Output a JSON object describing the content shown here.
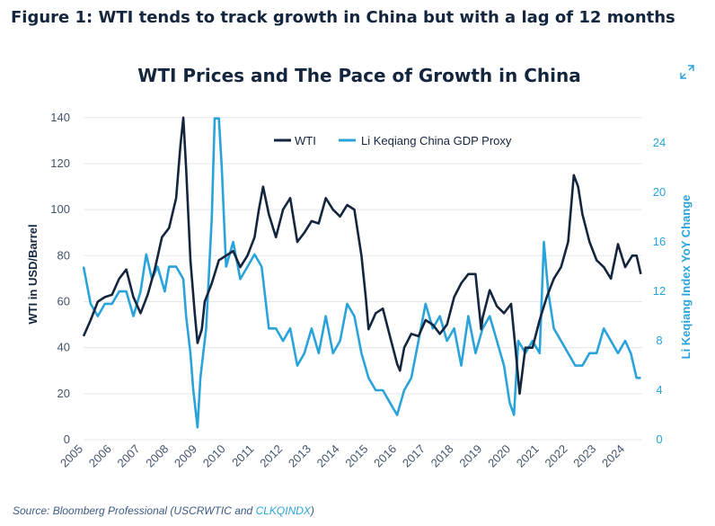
{
  "figure_title": "Figure 1: WTI tends to track growth in China but with a lag of 12 months",
  "source": {
    "prefix": "Source: Bloomberg Professional (USCRWTIC and ",
    "link": "CLKQINDX",
    "suffix": ")"
  },
  "expand_icon": "expand-arrows-icon",
  "colors": {
    "wti": "#14253e",
    "gdp": "#2aa3db"
  },
  "chart_data": {
    "type": "line",
    "title": "WTI Prices and The Pace of Growth in China",
    "ylabel": "WTI in USD/Barrel",
    "y2label": "Li Keqiang Index YoY Change",
    "ylim": [
      0,
      145
    ],
    "yticks": [
      0,
      20,
      40,
      60,
      80,
      100,
      120,
      140
    ],
    "y2lim": [
      0,
      27
    ],
    "y2ticks": [
      0,
      4,
      8,
      12,
      16,
      20,
      24
    ],
    "xlim": [
      2005,
      2024.6
    ],
    "xticks": [
      "2005",
      "2006",
      "2007",
      "2008",
      "2009",
      "2010",
      "2011",
      "2012",
      "2013",
      "2014",
      "2015",
      "2016",
      "2017",
      "2018",
      "2019",
      "2020",
      "2021",
      "2022",
      "2023",
      "2024"
    ],
    "legend_position": "top-center",
    "series": [
      {
        "name": "WTI",
        "axis": "left",
        "x": [
          2005.0,
          2005.25,
          2005.5,
          2005.75,
          2006.0,
          2006.25,
          2006.5,
          2006.75,
          2007.0,
          2007.25,
          2007.5,
          2007.75,
          2008.0,
          2008.25,
          2008.4,
          2008.5,
          2008.6,
          2008.75,
          2008.9,
          2009.0,
          2009.15,
          2009.25,
          2009.5,
          2009.75,
          2010.0,
          2010.25,
          2010.5,
          2010.75,
          2011.0,
          2011.15,
          2011.3,
          2011.5,
          2011.75,
          2012.0,
          2012.25,
          2012.5,
          2012.75,
          2013.0,
          2013.25,
          2013.5,
          2013.75,
          2014.0,
          2014.25,
          2014.5,
          2014.75,
          2014.9,
          2015.0,
          2015.25,
          2015.5,
          2015.75,
          2016.0,
          2016.1,
          2016.25,
          2016.5,
          2016.75,
          2017.0,
          2017.25,
          2017.5,
          2017.75,
          2018.0,
          2018.25,
          2018.5,
          2018.75,
          2018.95,
          2019.0,
          2019.25,
          2019.5,
          2019.75,
          2020.0,
          2020.15,
          2020.3,
          2020.5,
          2020.75,
          2021.0,
          2021.25,
          2021.5,
          2021.75,
          2022.0,
          2022.2,
          2022.35,
          2022.5,
          2022.75,
          2023.0,
          2023.25,
          2023.5,
          2023.75,
          2024.0,
          2024.25,
          2024.4,
          2024.55
        ],
        "y": [
          45,
          52,
          60,
          62,
          63,
          70,
          74,
          62,
          55,
          63,
          74,
          88,
          92,
          105,
          128,
          140,
          118,
          78,
          55,
          42,
          48,
          60,
          68,
          78,
          80,
          82,
          75,
          80,
          88,
          100,
          110,
          98,
          88,
          100,
          105,
          86,
          90,
          95,
          94,
          105,
          100,
          97,
          102,
          100,
          80,
          62,
          48,
          55,
          57,
          45,
          33,
          30,
          40,
          46,
          45,
          52,
          50,
          46,
          50,
          62,
          68,
          72,
          72,
          48,
          53,
          65,
          58,
          55,
          59,
          40,
          20,
          40,
          40,
          52,
          62,
          70,
          75,
          86,
          115,
          110,
          98,
          86,
          78,
          75,
          70,
          85,
          75,
          80,
          80,
          72
        ]
      },
      {
        "name": "Li Keqiang China GDP Proxy",
        "axis": "right",
        "x": [
          2005.0,
          2005.25,
          2005.5,
          2005.75,
          2006.0,
          2006.25,
          2006.5,
          2006.75,
          2007.0,
          2007.2,
          2007.4,
          2007.6,
          2007.85,
          2008.0,
          2008.25,
          2008.5,
          2008.6,
          2008.75,
          2008.85,
          2009.0,
          2009.1,
          2009.3,
          2009.5,
          2009.6,
          2009.75,
          2009.85,
          2010.0,
          2010.25,
          2010.5,
          2010.75,
          2011.0,
          2011.25,
          2011.5,
          2011.75,
          2012.0,
          2012.25,
          2012.5,
          2012.75,
          2013.0,
          2013.25,
          2013.5,
          2013.75,
          2014.0,
          2014.25,
          2014.5,
          2014.75,
          2015.0,
          2015.25,
          2015.5,
          2015.75,
          2016.0,
          2016.25,
          2016.5,
          2016.75,
          2017.0,
          2017.25,
          2017.5,
          2017.75,
          2018.0,
          2018.25,
          2018.5,
          2018.75,
          2019.0,
          2019.25,
          2019.5,
          2019.75,
          2019.95,
          2020.1,
          2020.25,
          2020.5,
          2020.75,
          2021.0,
          2021.15,
          2021.3,
          2021.5,
          2021.75,
          2022.0,
          2022.25,
          2022.5,
          2022.75,
          2023.0,
          2023.25,
          2023.5,
          2023.75,
          2024.0,
          2024.2,
          2024.4,
          2024.55
        ],
        "y": [
          14,
          11,
          10,
          11,
          11,
          12,
          12,
          10,
          12,
          15,
          13,
          14,
          12,
          14,
          14,
          13,
          10,
          7,
          4,
          1,
          5,
          9,
          18,
          26,
          26,
          22,
          14,
          16,
          13,
          14,
          15,
          14,
          9,
          9,
          8,
          9,
          6,
          7,
          9,
          7,
          10,
          7,
          8,
          11,
          10,
          7,
          5,
          4,
          4,
          3,
          2,
          4,
          5,
          8,
          11,
          9,
          10,
          8,
          9,
          6,
          10,
          7,
          9,
          10,
          8,
          6,
          3,
          2,
          8,
          7,
          8,
          7,
          16,
          12,
          9,
          8,
          7,
          6,
          6,
          7,
          7,
          9,
          8,
          7,
          8,
          7,
          5,
          5
        ]
      }
    ]
  }
}
